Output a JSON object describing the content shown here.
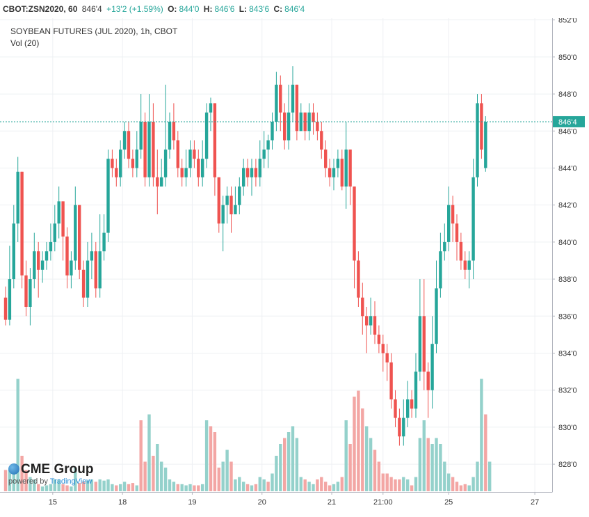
{
  "header": {
    "symbol": "CBOT:ZSN2020, 60",
    "last": "846'4",
    "change": "+13'2 (+1.59%)",
    "open_label": "O:",
    "open": "844'0",
    "high_label": "H:",
    "high": "846'6",
    "low_label": "L:",
    "low": "843'6",
    "close_label": "C:",
    "close": "846'4"
  },
  "legend": {
    "title": "SOYBEAN FUTURES (JUL 2020), 1h, CBOT",
    "volume": "Vol (20)"
  },
  "branding": {
    "brand": "CME Group",
    "powered_by": "powered by",
    "provider": "TradingView"
  },
  "colors": {
    "up": "#26a69a",
    "down": "#ef5350",
    "up_volume": "#94d1cb",
    "down_volume": "#f3a6a4",
    "price_line": "#26a69a",
    "grid": "#eef0f3"
  },
  "chart_data": {
    "type": "candlestick",
    "price_label": "846'4",
    "current_price": 846.5,
    "ylim": [
      826.5,
      852.1
    ],
    "yticks": [
      {
        "v": 828,
        "l": "828'0"
      },
      {
        "v": 830,
        "l": "830'0"
      },
      {
        "v": 832,
        "l": "832'0"
      },
      {
        "v": 834,
        "l": "834'0"
      },
      {
        "v": 836,
        "l": "836'0"
      },
      {
        "v": 838,
        "l": "838'0"
      },
      {
        "v": 840,
        "l": "840'0"
      },
      {
        "v": 842,
        "l": "842'0"
      },
      {
        "v": 844,
        "l": "844'0"
      },
      {
        "v": 846,
        "l": "846'0"
      },
      {
        "v": 848,
        "l": "848'0"
      },
      {
        "v": 850,
        "l": "850'0"
      },
      {
        "v": 852,
        "l": "852'0"
      }
    ],
    "xticks": [
      {
        "i": 11.5,
        "l": "15"
      },
      {
        "i": 28.5,
        "l": "18"
      },
      {
        "i": 45.5,
        "l": "19"
      },
      {
        "i": 62.5,
        "l": "20"
      },
      {
        "i": 79.5,
        "l": "21"
      },
      {
        "i": 92,
        "l": "21:00"
      },
      {
        "i": 108,
        "l": "25"
      },
      {
        "i": 129,
        "l": "27"
      }
    ],
    "candles": [
      [
        837.0,
        835.8,
        837.6,
        835.5
      ],
      [
        835.8,
        838.0,
        839.8,
        835.5
      ],
      [
        838.0,
        841.0,
        842.0,
        837.5
      ],
      [
        841.0,
        843.8,
        844.6,
        840.0
      ],
      [
        843.8,
        838.2,
        843.8,
        837.5
      ],
      [
        838.2,
        836.5,
        839.0,
        836.0
      ],
      [
        836.5,
        838.0,
        838.6,
        835.5
      ],
      [
        838.0,
        839.5,
        840.5,
        837.5
      ],
      [
        839.5,
        838.5,
        840.0,
        837.0
      ],
      [
        838.5,
        839.0,
        839.5,
        837.8
      ],
      [
        839.0,
        839.5,
        840.0,
        838.5
      ],
      [
        839.5,
        840.0,
        841.0,
        839.0
      ],
      [
        840.0,
        841.0,
        842.0,
        839.5
      ],
      [
        841.0,
        842.2,
        843.0,
        840.2
      ],
      [
        842.2,
        840.3,
        842.2,
        839.0
      ],
      [
        840.3,
        838.2,
        840.8,
        837.5
      ],
      [
        838.2,
        839.0,
        839.5,
        837.5
      ],
      [
        839.0,
        842.0,
        843.0,
        838.5
      ],
      [
        842.0,
        838.5,
        842.0,
        838.0
      ],
      [
        838.5,
        837.0,
        839.0,
        836.5
      ],
      [
        837.0,
        839.0,
        840.0,
        836.5
      ],
      [
        839.0,
        839.5,
        840.5,
        838.0
      ],
      [
        839.5,
        837.5,
        840.0,
        837.0
      ],
      [
        837.5,
        839.5,
        841.5,
        837.0
      ],
      [
        839.5,
        840.5,
        841.5,
        839.0
      ],
      [
        840.5,
        844.5,
        845.0,
        840.0
      ],
      [
        844.5,
        844.0,
        845.0,
        843.5
      ],
      [
        844.0,
        843.5,
        844.5,
        843.0
      ],
      [
        843.5,
        845.0,
        845.5,
        843.0
      ],
      [
        845.0,
        846.0,
        846.5,
        844.5
      ],
      [
        846.0,
        844.5,
        846.5,
        844.0
      ],
      [
        844.5,
        844.0,
        845.0,
        843.5
      ],
      [
        844.0,
        845.0,
        846.0,
        843.5
      ],
      [
        845.0,
        846.5,
        848.0,
        844.5
      ],
      [
        846.5,
        843.5,
        847.0,
        843.0
      ],
      [
        843.5,
        846.5,
        848.0,
        843.0
      ],
      [
        846.5,
        843.5,
        847.5,
        843.0
      ],
      [
        843.5,
        843.0,
        845.0,
        841.5
      ],
      [
        843.0,
        843.5,
        844.5,
        843.0
      ],
      [
        843.5,
        845.0,
        848.5,
        843.0
      ],
      [
        845.0,
        846.5,
        847.0,
        844.5
      ],
      [
        846.5,
        845.5,
        847.5,
        845.0
      ],
      [
        845.5,
        844.0,
        846.0,
        843.5
      ],
      [
        844.0,
        843.5,
        844.5,
        843.0
      ],
      [
        843.5,
        844.0,
        845.0,
        843.0
      ],
      [
        844.0,
        845.0,
        845.5,
        843.5
      ],
      [
        845.0,
        844.5,
        845.5,
        844.0
      ],
      [
        844.5,
        843.5,
        845.0,
        843.0
      ],
      [
        843.5,
        844.5,
        845.5,
        843.0
      ],
      [
        844.5,
        847.0,
        847.5,
        844.0
      ],
      [
        847.0,
        847.5,
        847.8,
        846.0
      ],
      [
        847.5,
        843.5,
        847.5,
        842.5
      ],
      [
        843.5,
        841.0,
        843.5,
        840.5
      ],
      [
        841.0,
        842.0,
        842.5,
        839.5
      ],
      [
        842.0,
        842.5,
        843.0,
        841.0
      ],
      [
        842.5,
        841.5,
        843.0,
        840.5
      ],
      [
        841.5,
        842.0,
        843.0,
        841.5
      ],
      [
        842.0,
        843.0,
        843.5,
        841.5
      ],
      [
        843.0,
        844.0,
        844.5,
        842.5
      ],
      [
        844.0,
        843.5,
        844.5,
        843.0
      ],
      [
        843.5,
        844.0,
        844.5,
        842.5
      ],
      [
        844.0,
        843.5,
        844.5,
        843.0
      ],
      [
        843.5,
        844.5,
        845.5,
        843.0
      ],
      [
        844.5,
        845.0,
        846.0,
        844.0
      ],
      [
        845.0,
        845.5,
        845.8,
        844.0
      ],
      [
        845.5,
        846.5,
        847.0,
        845.0
      ],
      [
        846.5,
        848.5,
        849.2,
        846.0
      ],
      [
        848.5,
        847.0,
        849.0,
        846.0
      ],
      [
        847.0,
        845.5,
        847.5,
        845.0
      ],
      [
        845.5,
        847.0,
        848.5,
        845.0
      ],
      [
        847.0,
        848.5,
        849.5,
        846.5
      ],
      [
        848.5,
        846.0,
        848.5,
        845.5
      ],
      [
        846.0,
        847.0,
        847.5,
        846.0
      ],
      [
        847.0,
        846.0,
        847.0,
        845.5
      ],
      [
        846.0,
        847.0,
        847.5,
        845.5
      ],
      [
        847.0,
        846.5,
        847.5,
        845.8
      ],
      [
        846.5,
        846.0,
        847.0,
        845.5
      ],
      [
        846.0,
        845.0,
        846.5,
        844.5
      ],
      [
        845.0,
        844.0,
        845.5,
        843.5
      ],
      [
        844.0,
        843.5,
        844.5,
        843.0
      ],
      [
        843.5,
        844.0,
        844.5,
        842.8
      ],
      [
        844.0,
        844.5,
        845.0,
        843.5
      ],
      [
        844.5,
        843.0,
        845.0,
        842.8
      ],
      [
        843.0,
        845.0,
        846.5,
        841.8
      ],
      [
        845.0,
        843.0,
        845.0,
        842.0
      ],
      [
        843.0,
        839.0,
        843.0,
        837.5
      ],
      [
        839.0,
        837.0,
        839.5,
        836.5
      ],
      [
        837.0,
        836.0,
        837.8,
        835.0
      ],
      [
        836.0,
        835.5,
        836.5,
        834.0
      ],
      [
        835.5,
        836.0,
        837.0,
        835.0
      ],
      [
        836.0,
        835.0,
        836.8,
        834.5
      ],
      [
        835.0,
        834.5,
        835.5,
        834.0
      ],
      [
        834.5,
        834.0,
        835.0,
        833.0
      ],
      [
        834.0,
        833.5,
        834.5,
        832.5
      ],
      [
        833.5,
        831.5,
        834.0,
        831.0
      ],
      [
        831.5,
        830.5,
        832.0,
        830.0
      ],
      [
        830.5,
        829.5,
        831.0,
        829.0
      ],
      [
        829.5,
        830.5,
        831.5,
        829.0
      ],
      [
        830.5,
        831.5,
        832.5,
        830.0
      ],
      [
        831.5,
        831.0,
        832.0,
        830.5
      ],
      [
        831.0,
        833.0,
        834.0,
        830.5
      ],
      [
        833.0,
        836.0,
        838.0,
        832.5
      ],
      [
        836.0,
        833.0,
        838.0,
        832.0
      ],
      [
        833.0,
        832.0,
        833.5,
        830.5
      ],
      [
        832.0,
        834.5,
        836.0,
        831.0
      ],
      [
        834.5,
        837.5,
        839.0,
        834.0
      ],
      [
        837.5,
        839.5,
        840.5,
        837.0
      ],
      [
        839.5,
        840.0,
        841.0,
        839.0
      ],
      [
        840.0,
        842.0,
        843.0,
        839.5
      ],
      [
        842.0,
        841.0,
        842.5,
        840.0
      ],
      [
        841.0,
        840.0,
        841.5,
        839.0
      ],
      [
        840.0,
        839.0,
        840.5,
        838.5
      ],
      [
        839.0,
        838.5,
        839.5,
        838.0
      ],
      [
        838.5,
        839.0,
        839.5,
        837.5
      ],
      [
        839.0,
        843.5,
        844.5,
        838.0
      ],
      [
        843.5,
        847.5,
        848.0,
        843.0
      ],
      [
        847.5,
        845.0,
        848.0,
        844.5
      ],
      [
        844.0,
        846.5,
        846.8,
        843.8
      ]
    ],
    "volumes": [
      [
        0.18,
        0
      ],
      [
        0.18,
        1
      ],
      [
        0.2,
        1
      ],
      [
        0.95,
        1
      ],
      [
        0.3,
        0
      ],
      [
        0.18,
        0
      ],
      [
        0.12,
        1
      ],
      [
        0.1,
        1
      ],
      [
        0.06,
        0
      ],
      [
        0.04,
        1
      ],
      [
        0.05,
        1
      ],
      [
        0.06,
        1
      ],
      [
        0.1,
        1
      ],
      [
        0.1,
        1
      ],
      [
        0.06,
        0
      ],
      [
        0.05,
        0
      ],
      [
        0.04,
        1
      ],
      [
        0.2,
        1
      ],
      [
        0.07,
        0
      ],
      [
        0.08,
        0
      ],
      [
        0.09,
        1
      ],
      [
        0.1,
        1
      ],
      [
        0.08,
        0
      ],
      [
        0.1,
        1
      ],
      [
        0.09,
        1
      ],
      [
        0.1,
        1
      ],
      [
        0.06,
        1
      ],
      [
        0.05,
        0
      ],
      [
        0.06,
        1
      ],
      [
        0.08,
        1
      ],
      [
        0.06,
        0
      ],
      [
        0.07,
        0
      ],
      [
        0.05,
        1
      ],
      [
        0.6,
        0
      ],
      [
        0.25,
        0
      ],
      [
        0.65,
        1
      ],
      [
        0.3,
        0
      ],
      [
        0.4,
        1
      ],
      [
        0.25,
        1
      ],
      [
        0.2,
        1
      ],
      [
        0.1,
        1
      ],
      [
        0.08,
        1
      ],
      [
        0.06,
        0
      ],
      [
        0.06,
        1
      ],
      [
        0.05,
        1
      ],
      [
        0.06,
        1
      ],
      [
        0.05,
        0
      ],
      [
        0.05,
        0
      ],
      [
        0.06,
        1
      ],
      [
        0.6,
        1
      ],
      [
        0.55,
        0
      ],
      [
        0.5,
        0
      ],
      [
        0.2,
        0
      ],
      [
        0.25,
        1
      ],
      [
        0.35,
        1
      ],
      [
        0.25,
        0
      ],
      [
        0.1,
        1
      ],
      [
        0.12,
        1
      ],
      [
        0.08,
        1
      ],
      [
        0.06,
        0
      ],
      [
        0.05,
        1
      ],
      [
        0.06,
        0
      ],
      [
        0.12,
        1
      ],
      [
        0.1,
        1
      ],
      [
        0.08,
        0
      ],
      [
        0.15,
        1
      ],
      [
        0.3,
        1
      ],
      [
        0.4,
        1
      ],
      [
        0.45,
        0
      ],
      [
        0.5,
        1
      ],
      [
        0.55,
        1
      ],
      [
        0.45,
        1
      ],
      [
        0.12,
        1
      ],
      [
        0.1,
        0
      ],
      [
        0.08,
        1
      ],
      [
        0.06,
        1
      ],
      [
        0.1,
        0
      ],
      [
        0.12,
        0
      ],
      [
        0.08,
        0
      ],
      [
        0.05,
        0
      ],
      [
        0.06,
        1
      ],
      [
        0.08,
        1
      ],
      [
        0.12,
        0
      ],
      [
        0.6,
        1
      ],
      [
        0.4,
        0
      ],
      [
        0.8,
        0
      ],
      [
        0.85,
        0
      ],
      [
        0.7,
        0
      ],
      [
        0.55,
        1
      ],
      [
        0.45,
        1
      ],
      [
        0.35,
        0
      ],
      [
        0.25,
        0
      ],
      [
        0.15,
        0
      ],
      [
        0.15,
        0
      ],
      [
        0.12,
        0
      ],
      [
        0.1,
        0
      ],
      [
        0.1,
        0
      ],
      [
        0.12,
        1
      ],
      [
        0.1,
        1
      ],
      [
        0.05,
        0
      ],
      [
        0.12,
        1
      ],
      [
        0.45,
        1
      ],
      [
        0.6,
        1
      ],
      [
        0.45,
        0
      ],
      [
        0.4,
        1
      ],
      [
        0.45,
        1
      ],
      [
        0.4,
        1
      ],
      [
        0.25,
        1
      ],
      [
        0.15,
        1
      ],
      [
        0.12,
        0
      ],
      [
        0.08,
        0
      ],
      [
        0.05,
        0
      ],
      [
        0.06,
        0
      ],
      [
        0.05,
        1
      ],
      [
        0.12,
        1
      ],
      [
        0.25,
        1
      ],
      [
        0.95,
        1
      ],
      [
        0.65,
        0
      ],
      [
        0.25,
        1
      ]
    ]
  }
}
